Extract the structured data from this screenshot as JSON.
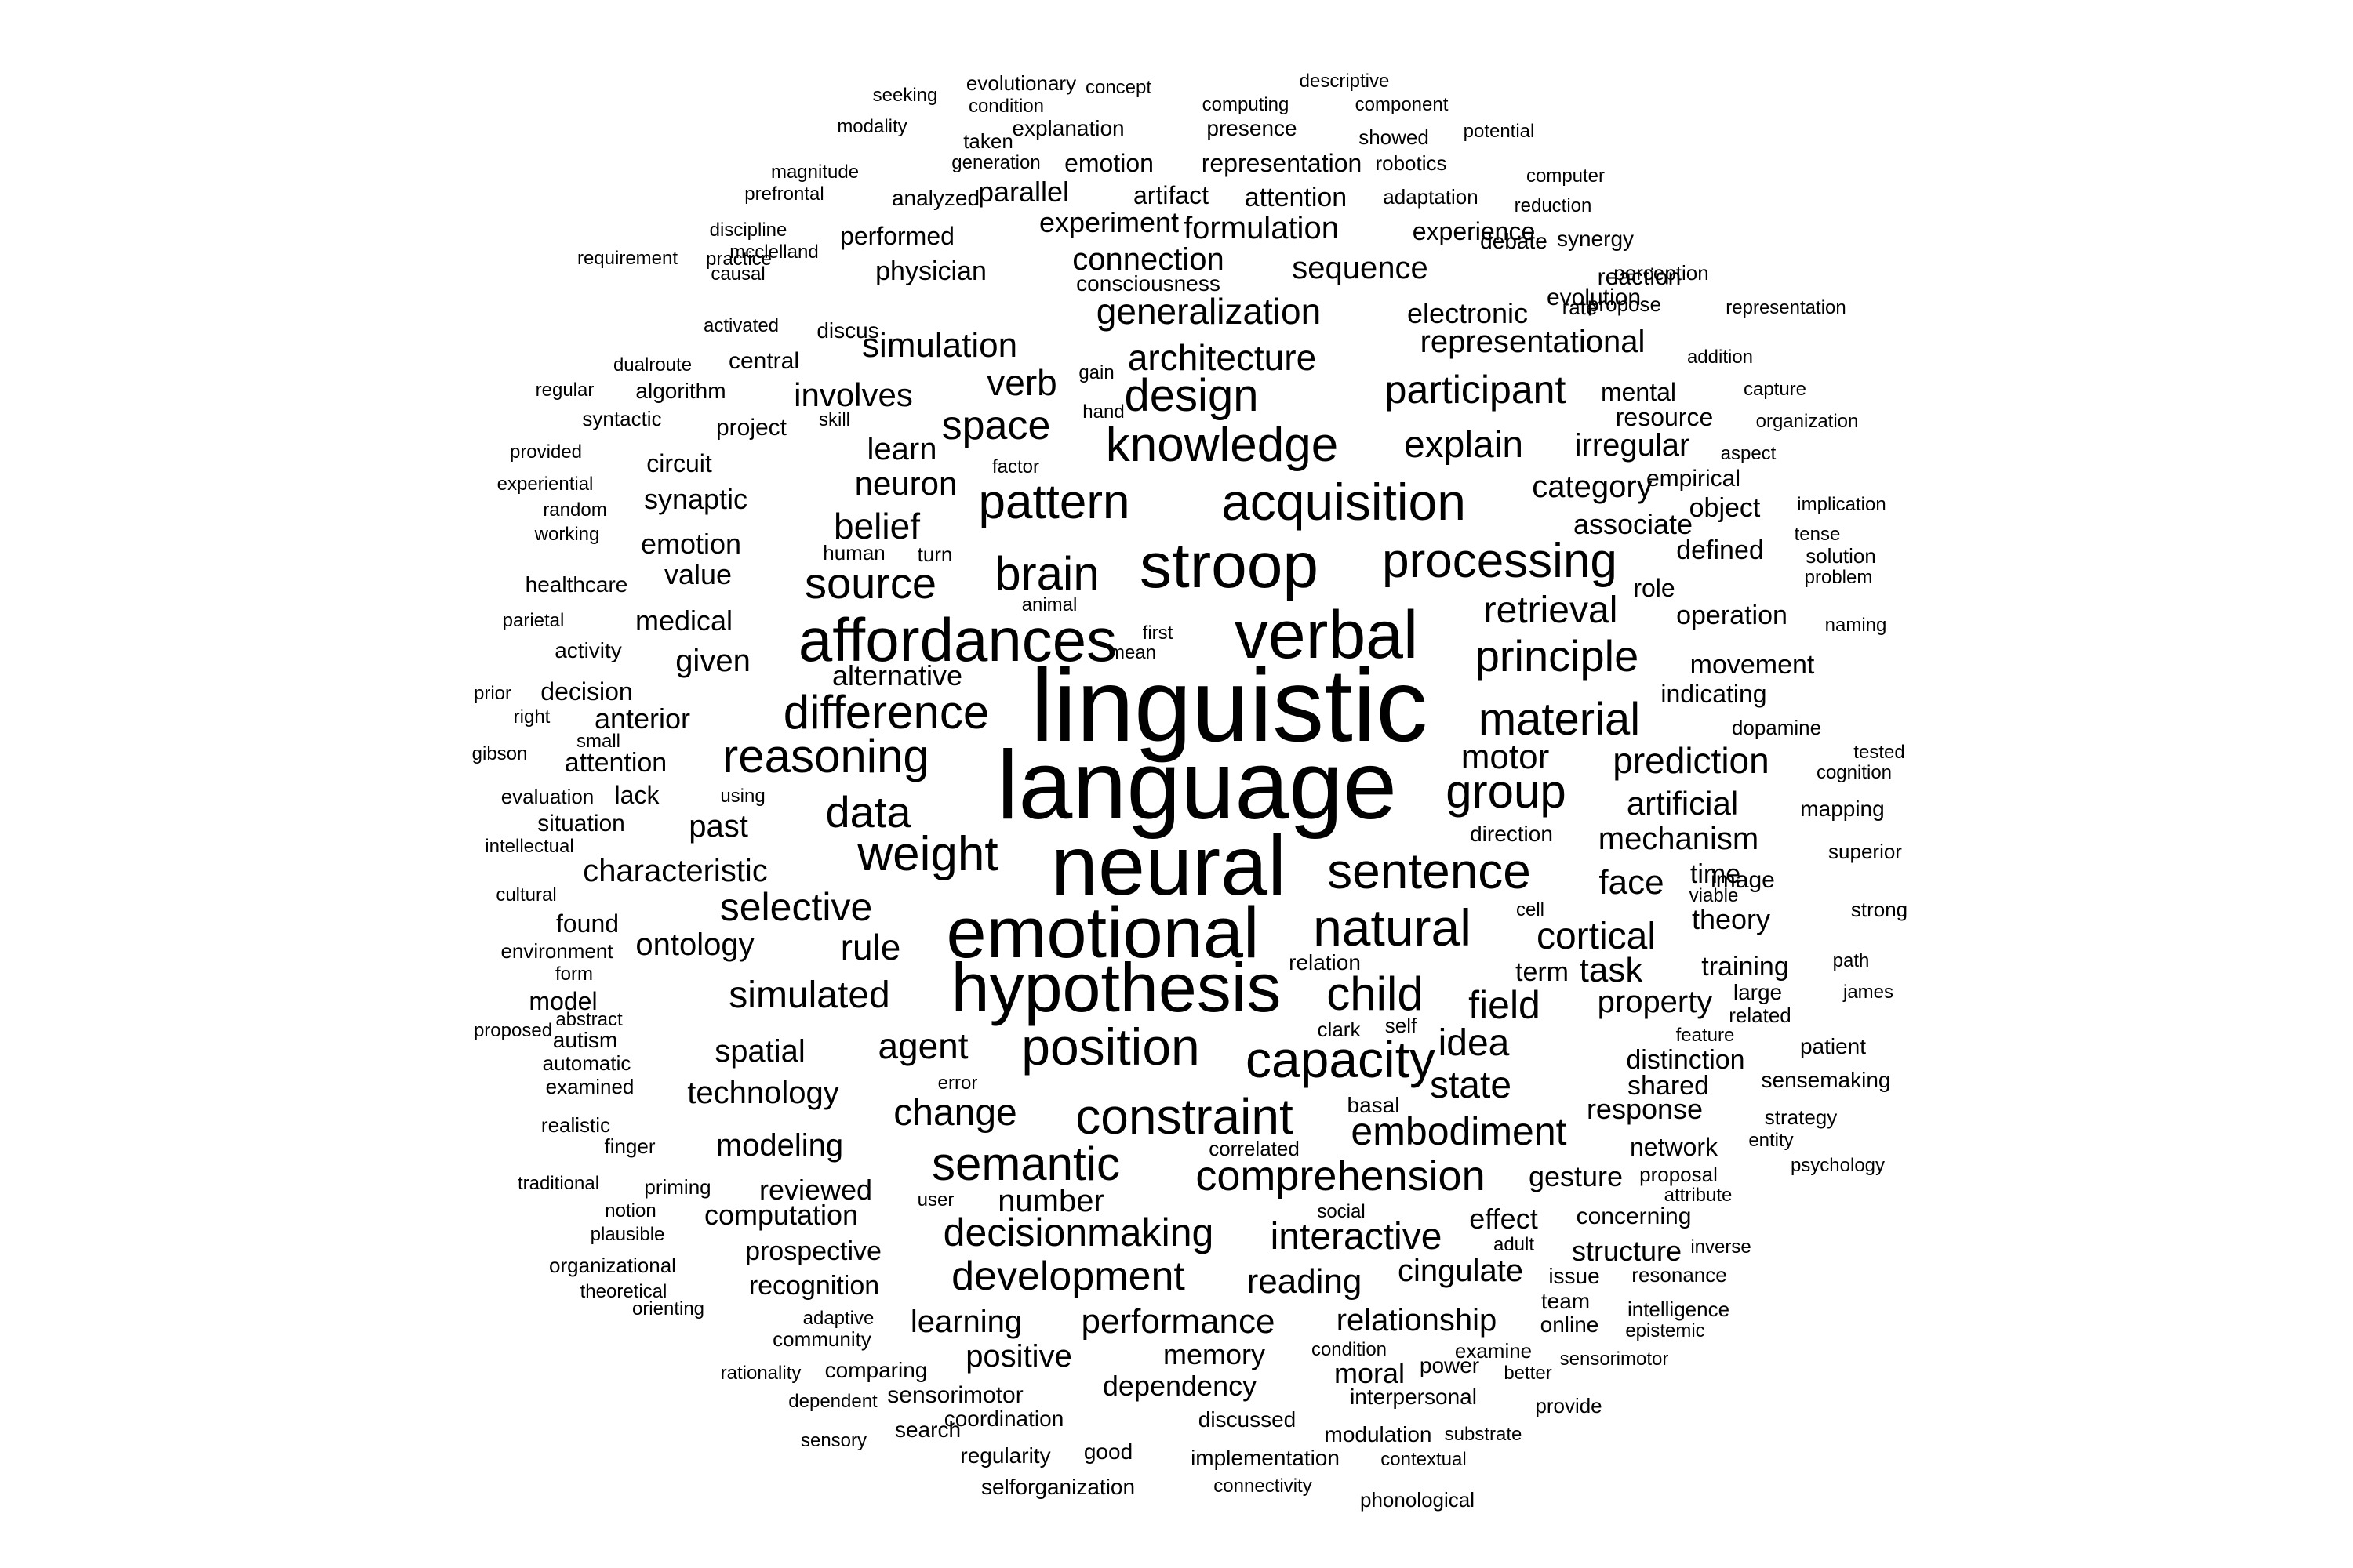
{
  "text_color": "#000000",
  "background_color": "#ffffff",
  "words": [
    "linguistic",
    "language",
    "neural",
    "emotional",
    "hypothesis",
    "verbal",
    "stroop",
    "affordances",
    "acquisition",
    "knowledge",
    "pattern",
    "brain",
    "sentence",
    "natural",
    "position",
    "constraint",
    "capacity",
    "difference",
    "reasoning",
    "processing",
    "semantic",
    "child",
    "source",
    "design",
    "material",
    "principle",
    "group",
    "weight",
    "data",
    "comprehension",
    "decisionmaking",
    "development",
    "embodiment",
    "space",
    "architecture",
    "generalization",
    "participant",
    "explain",
    "retrieval",
    "simulated",
    "selective",
    "cortical",
    "field",
    "belief",
    "verb",
    "simulation",
    "involves",
    "rule",
    "agent",
    "change",
    "interactive",
    "idea",
    "state",
    "performance",
    "reading",
    "prediction",
    "motor",
    "artificial",
    "mechanism",
    "face",
    "task",
    "property",
    "category",
    "representational",
    "sequence",
    "electronic",
    "connection",
    "formulation",
    "experiment",
    "parallel",
    "attention",
    "artifact",
    "emotion",
    "representation",
    "explanation",
    "presence",
    "evolutionary",
    "concept",
    "descriptive",
    "seeking",
    "condition",
    "computing",
    "component",
    "modality",
    "taken",
    "showed",
    "potential",
    "magnitude",
    "generation",
    "robotics",
    "computer",
    "prefrontal",
    "analyzed",
    "adaptation",
    "reduction",
    "discipline",
    "performed",
    "experience",
    "debate",
    "synergy",
    "perception",
    "practice",
    "mcclelland",
    "consciousness",
    "reaction",
    "requirement",
    "physician",
    "evolution",
    "causal",
    "discus",
    "rate",
    "propose",
    "representation",
    "activated",
    "addition",
    "dualroute",
    "central",
    "mental",
    "capture",
    "regular",
    "algorithm",
    "gain",
    "syntactic",
    "skill",
    "hand",
    "resource",
    "organization",
    "project",
    "learn",
    "irregular",
    "aspect",
    "provided",
    "circuit",
    "factor",
    "empirical",
    "experiential",
    "neuron",
    "synaptic",
    "object",
    "implication",
    "random",
    "associate",
    "tense",
    "working",
    "emotion",
    "human",
    "turn",
    "defined",
    "solution",
    "healthcare",
    "value",
    "role",
    "problem",
    "animal",
    "parietal",
    "medical",
    "operation",
    "naming",
    "first",
    "activity",
    "mean",
    "given",
    "alternative",
    "movement",
    "prior",
    "decision",
    "indicating",
    "right",
    "anterior",
    "small",
    "dopamine",
    "gibson",
    "attention",
    "tested",
    "lack",
    "cognition",
    "evaluation",
    "using",
    "past",
    "mapping",
    "situation",
    "direction",
    "intellectual",
    "characteristic",
    "time",
    "image",
    "superior",
    "cultural",
    "viable",
    "found",
    "cell",
    "theory",
    "strong",
    "environment",
    "ontology",
    "relation",
    "term",
    "training",
    "path",
    "form",
    "model",
    "large",
    "james",
    "proposed",
    "autism",
    "abstract",
    "clark",
    "self",
    "feature",
    "related",
    "automatic",
    "spatial",
    "distinction",
    "patient",
    "examined",
    "technology",
    "error",
    "shared",
    "sensemaking",
    "basal",
    "response",
    "strategy",
    "realistic",
    "finger",
    "modeling",
    "network",
    "entity",
    "correlated",
    "psychology",
    "traditional",
    "priming",
    "reviewed",
    "gesture",
    "proposal",
    "notion",
    "number",
    "attribute",
    "user",
    "computation",
    "social",
    "effect",
    "concerning",
    "plausible",
    "adult",
    "structure",
    "inverse",
    "prospective",
    "organizational",
    "cingulate",
    "issue",
    "resonance",
    "theoretical",
    "recognition",
    "team",
    "orienting",
    "intelligence",
    "adaptive",
    "learning",
    "online",
    "relationship",
    "epistemic",
    "community",
    "positive",
    "memory",
    "condition",
    "examine",
    "rationality",
    "comparing",
    "power",
    "sensorimotor",
    "better",
    "moral",
    "dependent",
    "sensorimotor",
    "dependency",
    "interpersonal",
    "provide",
    "coordination",
    "discussed",
    "sensory",
    "search",
    "modulation",
    "substrate",
    "regularity",
    "good",
    "implementation",
    "contextual",
    "selforganization",
    "connectivity",
    "phonological"
  ]
}
